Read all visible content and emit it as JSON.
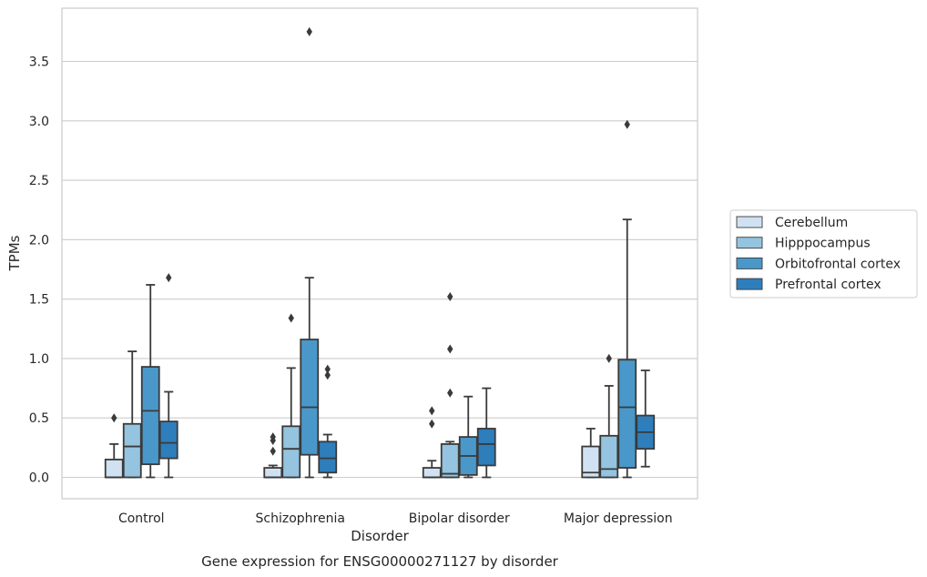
{
  "chart_data": {
    "type": "boxplot",
    "title": "",
    "caption": "Gene expression for ENSG00000271127 by disorder",
    "xlabel": "Disorder",
    "ylabel": "TPMs",
    "ylim": [
      -0.18,
      3.9
    ],
    "yticks": [
      0.0,
      0.5,
      1.0,
      1.5,
      2.0,
      2.5,
      3.0,
      3.5
    ],
    "ytick_labels": [
      "0.0",
      "0.5",
      "1.0",
      "1.5",
      "2.0",
      "2.5",
      "3.0",
      "3.5"
    ],
    "grid": "horizontal",
    "legend_position": "right",
    "categories": [
      "Control",
      "Schizophrenia",
      "Bipolar disorder",
      "Major depression"
    ],
    "series": [
      {
        "name": "Cerebellum",
        "color": "#d0e1f2",
        "boxes": [
          {
            "whislo": 0.0,
            "q1": 0.0,
            "med": 0.0,
            "q3": 0.15,
            "whishi": 0.28,
            "fliers": [
              0.5
            ]
          },
          {
            "whislo": 0.0,
            "q1": 0.0,
            "med": 0.0,
            "q3": 0.08,
            "whishi": 0.1,
            "fliers": [
              0.22,
              0.31,
              0.34
            ]
          },
          {
            "whislo": 0.0,
            "q1": 0.0,
            "med": 0.0,
            "q3": 0.08,
            "whishi": 0.14,
            "fliers": [
              0.45,
              0.56
            ]
          },
          {
            "whislo": 0.0,
            "q1": 0.0,
            "med": 0.04,
            "q3": 0.26,
            "whishi": 0.41,
            "fliers": []
          }
        ]
      },
      {
        "name": "Hipppocampus",
        "color": "#94c4df",
        "boxes": [
          {
            "whislo": 0.0,
            "q1": 0.0,
            "med": 0.26,
            "q3": 0.45,
            "whishi": 1.06,
            "fliers": []
          },
          {
            "whislo": 0.0,
            "q1": 0.0,
            "med": 0.24,
            "q3": 0.43,
            "whishi": 0.92,
            "fliers": [
              1.34
            ]
          },
          {
            "whislo": 0.0,
            "q1": 0.0,
            "med": 0.03,
            "q3": 0.28,
            "whishi": 0.3,
            "fliers": [
              0.71,
              1.08,
              1.52
            ]
          },
          {
            "whislo": 0.0,
            "q1": 0.0,
            "med": 0.07,
            "q3": 0.35,
            "whishi": 0.77,
            "fliers": [
              1.0
            ]
          }
        ]
      },
      {
        "name": "Orbitofrontal cortex",
        "color": "#4a98c9",
        "boxes": [
          {
            "whislo": 0.0,
            "q1": 0.11,
            "med": 0.56,
            "q3": 0.93,
            "whishi": 1.62,
            "fliers": []
          },
          {
            "whislo": 0.0,
            "q1": 0.19,
            "med": 0.59,
            "q3": 1.16,
            "whishi": 1.68,
            "fliers": [
              3.75
            ]
          },
          {
            "whislo": 0.0,
            "q1": 0.02,
            "med": 0.18,
            "q3": 0.34,
            "whishi": 0.68,
            "fliers": []
          },
          {
            "whislo": 0.0,
            "q1": 0.08,
            "med": 0.59,
            "q3": 0.99,
            "whishi": 2.17,
            "fliers": [
              2.97
            ]
          }
        ]
      },
      {
        "name": "Prefrontal cortex",
        "color": "#2e7ebc",
        "boxes": [
          {
            "whislo": 0.0,
            "q1": 0.16,
            "med": 0.29,
            "q3": 0.47,
            "whishi": 0.72,
            "fliers": [
              1.68
            ]
          },
          {
            "whislo": 0.0,
            "q1": 0.04,
            "med": 0.16,
            "q3": 0.3,
            "whishi": 0.36,
            "fliers": [
              0.86,
              0.91
            ]
          },
          {
            "whislo": 0.0,
            "q1": 0.1,
            "med": 0.28,
            "q3": 0.41,
            "whishi": 0.75,
            "fliers": []
          },
          {
            "whislo": 0.09,
            "q1": 0.24,
            "med": 0.38,
            "q3": 0.52,
            "whishi": 0.9,
            "fliers": []
          }
        ]
      }
    ]
  }
}
